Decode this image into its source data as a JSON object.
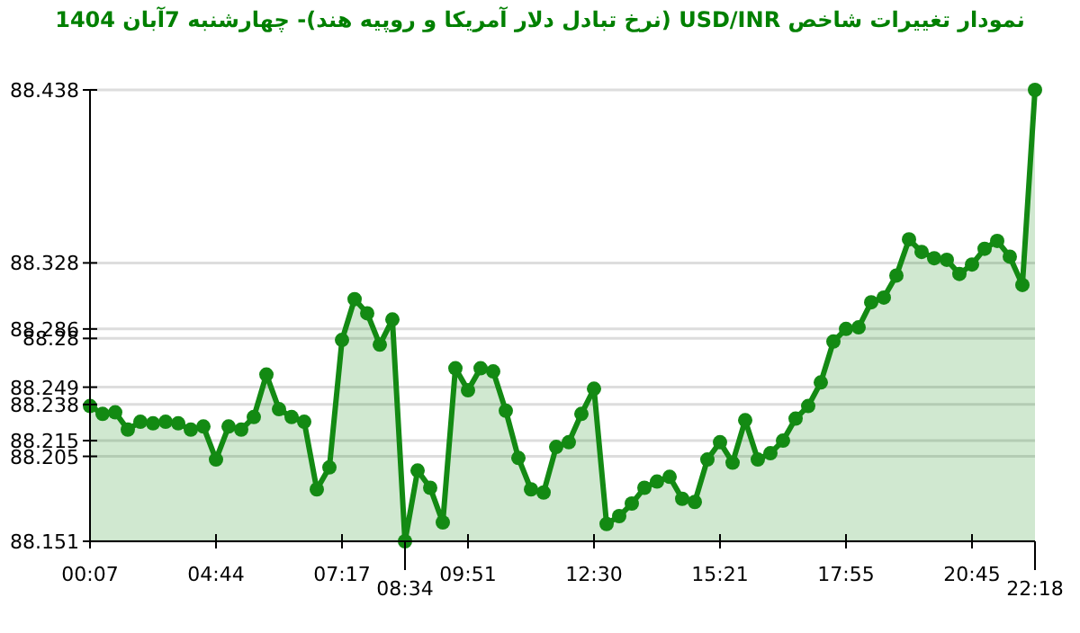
{
  "chart_data": {
    "type": "area",
    "title": "نمودار تغییرات شاخص USD/INR (نرخ تبادل دلار آمریکا و روپیه هند)- چهارشنبه 7آبان 1404",
    "categories": [
      "00:07",
      null,
      null,
      null,
      null,
      null,
      null,
      null,
      null,
      null,
      "04:44",
      null,
      null,
      null,
      null,
      null,
      null,
      null,
      null,
      null,
      "07:17",
      null,
      null,
      null,
      null,
      "08:34",
      null,
      null,
      null,
      null,
      "09:51",
      null,
      null,
      null,
      null,
      null,
      null,
      null,
      null,
      null,
      "12:30",
      null,
      null,
      null,
      null,
      null,
      null,
      null,
      null,
      null,
      "15:21",
      null,
      null,
      null,
      null,
      null,
      null,
      null,
      null,
      null,
      "17:55",
      null,
      null,
      null,
      null,
      null,
      null,
      null,
      null,
      null,
      "20:45",
      null,
      null,
      null,
      null,
      "22:18"
    ],
    "values": [
      88.237,
      88.232,
      88.233,
      88.222,
      88.227,
      88.226,
      88.227,
      88.226,
      88.222,
      88.224,
      88.203,
      88.224,
      88.222,
      88.23,
      88.257,
      88.235,
      88.23,
      88.227,
      88.184,
      88.198,
      88.279,
      88.305,
      88.296,
      88.276,
      88.292,
      88.151,
      88.196,
      88.185,
      88.163,
      88.261,
      88.247,
      88.261,
      88.259,
      88.234,
      88.204,
      88.184,
      88.182,
      88.211,
      88.214,
      88.232,
      88.248,
      88.162,
      88.167,
      88.175,
      88.185,
      88.189,
      88.192,
      88.178,
      88.176,
      88.203,
      88.214,
      88.201,
      88.228,
      88.203,
      88.207,
      88.215,
      88.229,
      88.237,
      88.252,
      88.278,
      88.286,
      88.287,
      88.303,
      88.306,
      88.32,
      88.343,
      88.335,
      88.331,
      88.33,
      88.321,
      88.327,
      88.337,
      88.342,
      88.332,
      88.314,
      88.438
    ],
    "color": "#138a13",
    "ylim": [
      88.151,
      88.438
    ],
    "yticks": [
      88.151,
      88.205,
      88.215,
      88.238,
      88.249,
      88.28,
      88.286,
      88.328,
      88.438
    ],
    "grid": "y",
    "marker": "circle",
    "line_style": "solid"
  }
}
